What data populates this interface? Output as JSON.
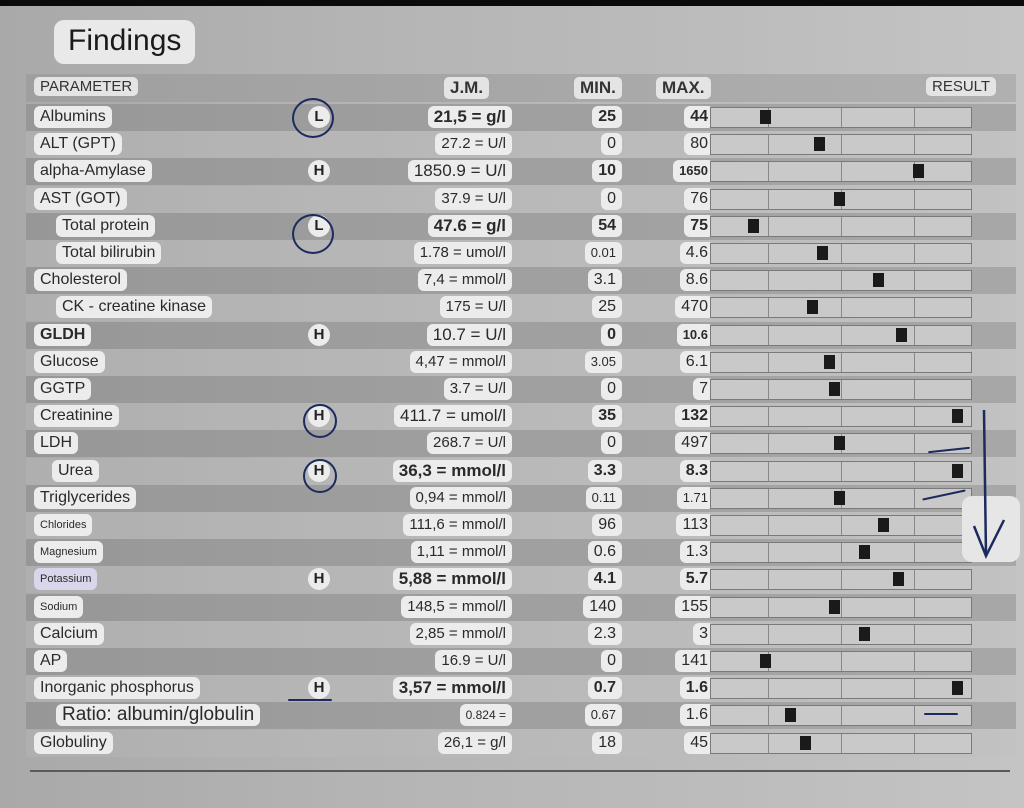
{
  "title": "Findings",
  "columns": {
    "parameter": "PARAMETER",
    "unit": "J.M.",
    "min": "MIN.",
    "max": "MAX.",
    "result": "RESULT"
  },
  "rows": [
    {
      "name": "Albumins",
      "flag": "L",
      "value": "21,5 = g/l",
      "min": "25",
      "max": "44",
      "pos": 0.2
    },
    {
      "name": "ALT (GPT)",
      "flag": "",
      "value": "27.2 = U/l",
      "min": "0",
      "max": "80",
      "pos": 0.42
    },
    {
      "name": "alpha-Amylase",
      "flag": "H",
      "value": "1850.9 = U/l",
      "min": "10",
      "max": "1650",
      "pos": 0.82
    },
    {
      "name": "AST (GOT)",
      "flag": "",
      "value": "37.9 = U/l",
      "min": "0",
      "max": "76",
      "pos": 0.5
    },
    {
      "name": "Total protein",
      "flag": "L",
      "value": "47.6 = g/l",
      "min": "54",
      "max": "75",
      "pos": 0.15
    },
    {
      "name": "Total bilirubin",
      "flag": "",
      "value": "1.78 = umol/l",
      "min": "0.01",
      "max": "4.6",
      "pos": 0.43
    },
    {
      "name": "Cholesterol",
      "flag": "",
      "value": "7,4 = mmol/l",
      "min": "3.1",
      "max": "8.6",
      "pos": 0.66
    },
    {
      "name": "CK - creatine kinase",
      "flag": "",
      "value": "175 = U/l",
      "min": "25",
      "max": "470",
      "pos": 0.39
    },
    {
      "name": "GLDH",
      "flag": "H",
      "value": "10.7 = U/l",
      "min": "0",
      "max": "10.6",
      "pos": 0.75
    },
    {
      "name": "Glucose",
      "flag": "",
      "value": "4,47 = mmol/l",
      "min": "3.05",
      "max": "6.1",
      "pos": 0.46
    },
    {
      "name": "GGTP",
      "flag": "",
      "value": "3.7 = U/l",
      "min": "0",
      "max": "7",
      "pos": 0.48
    },
    {
      "name": "Creatinine",
      "flag": "H",
      "value": "411.7 = umol/l",
      "min": "35",
      "max": "132",
      "pos": 0.98
    },
    {
      "name": "LDH",
      "flag": "",
      "value": "268.7 = U/l",
      "min": "0",
      "max": "497",
      "pos": 0.5
    },
    {
      "name": "Urea",
      "flag": "H",
      "value": "36,3 = mmol/l",
      "min": "3.3",
      "max": "8.3",
      "pos": 0.98
    },
    {
      "name": "Triglycerides",
      "flag": "",
      "value": "0,94 = mmol/l",
      "min": "0.11",
      "max": "1.71",
      "pos": 0.5
    },
    {
      "name": "Chlorides",
      "flag": "",
      "value": "111,6 = mmol/l",
      "min": "96",
      "max": "113",
      "pos": 0.68
    },
    {
      "name": "Magnesium",
      "flag": "",
      "value": "1,11 = mmol/l",
      "min": "0.6",
      "max": "1.3",
      "pos": 0.6
    },
    {
      "name": "Potassium",
      "flag": "H",
      "value": "5,88 = mmol/l",
      "min": "4.1",
      "max": "5.7",
      "pos": 0.74
    },
    {
      "name": "Sodium",
      "flag": "",
      "value": "148,5 = mmol/l",
      "min": "140",
      "max": "155",
      "pos": 0.48
    },
    {
      "name": "Calcium",
      "flag": "",
      "value": "2,85 = mmol/l",
      "min": "2.3",
      "max": "3",
      "pos": 0.6
    },
    {
      "name": "AP",
      "flag": "",
      "value": "16.9 = U/l",
      "min": "0",
      "max": "141",
      "pos": 0.2
    },
    {
      "name": "Inorganic phosphorus",
      "flag": "H",
      "value": "3,57 = mmol/l",
      "min": "0.7",
      "max": "1.6",
      "pos": 0.98
    },
    {
      "name": "Ratio: albumin/globulin",
      "flag": "",
      "value": "0.824 =",
      "min": "0.67",
      "max": "1.6",
      "pos": 0.3
    },
    {
      "name": "Globuliny",
      "flag": "",
      "value": "26,1 = g/l",
      "min": "18",
      "max": "45",
      "pos": 0.36
    }
  ],
  "colors": {
    "ink": "#1c2a5e",
    "marker": "#1a1a1a"
  }
}
